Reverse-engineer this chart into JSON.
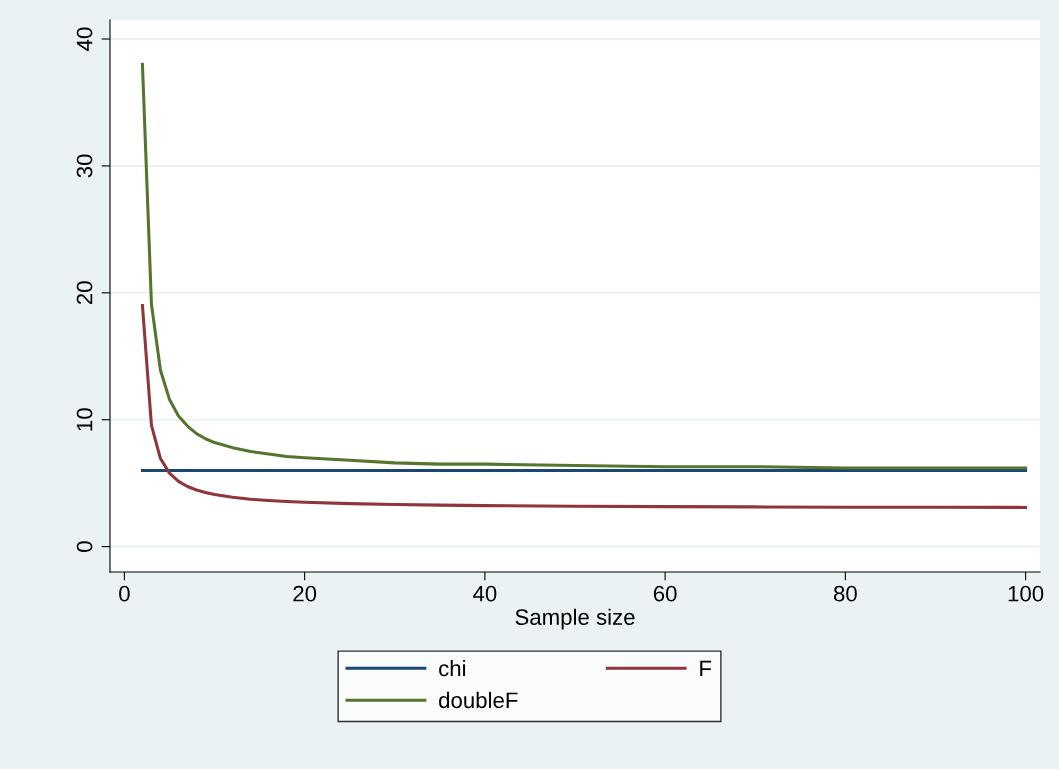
{
  "chart_data": {
    "type": "line",
    "xlabel": "Sample size",
    "x": [
      2,
      3,
      4,
      5,
      6,
      7,
      8,
      9,
      10,
      12,
      14,
      16,
      18,
      20,
      25,
      30,
      35,
      40,
      50,
      60,
      70,
      80,
      90,
      100
    ],
    "series": [
      {
        "name": "chi",
        "color": "#1a476f",
        "values": [
          6.0,
          6.0,
          6.0,
          6.0,
          6.0,
          6.0,
          6.0,
          6.0,
          6.0,
          6.0,
          6.0,
          6.0,
          6.0,
          6.0,
          6.0,
          6.0,
          6.0,
          6.0,
          6.0,
          6.0,
          6.0,
          6.0,
          6.0,
          6.0
        ]
      },
      {
        "name": "F",
        "color": "#90353b",
        "values": [
          19.0,
          9.55,
          6.94,
          5.79,
          5.14,
          4.74,
          4.46,
          4.26,
          4.1,
          3.89,
          3.74,
          3.63,
          3.55,
          3.49,
          3.39,
          3.32,
          3.27,
          3.23,
          3.18,
          3.15,
          3.13,
          3.11,
          3.1,
          3.09
        ]
      },
      {
        "name": "doubleF",
        "color": "#55752f",
        "values": [
          38.0,
          19.1,
          13.9,
          11.6,
          10.3,
          9.5,
          8.9,
          8.5,
          8.2,
          7.8,
          7.5,
          7.3,
          7.1,
          7.0,
          6.8,
          6.6,
          6.5,
          6.5,
          6.4,
          6.3,
          6.3,
          6.2,
          6.2,
          6.2
        ]
      }
    ],
    "xlim": [
      -1.6,
      101.6
    ],
    "ylim": [
      -2,
      41.5
    ],
    "xticks": [
      0,
      20,
      40,
      60,
      80,
      100
    ],
    "yticks": [
      0,
      10,
      20,
      30,
      40
    ],
    "grid": "y",
    "legend": "bottom",
    "marker": "none",
    "line_style": "solid"
  }
}
